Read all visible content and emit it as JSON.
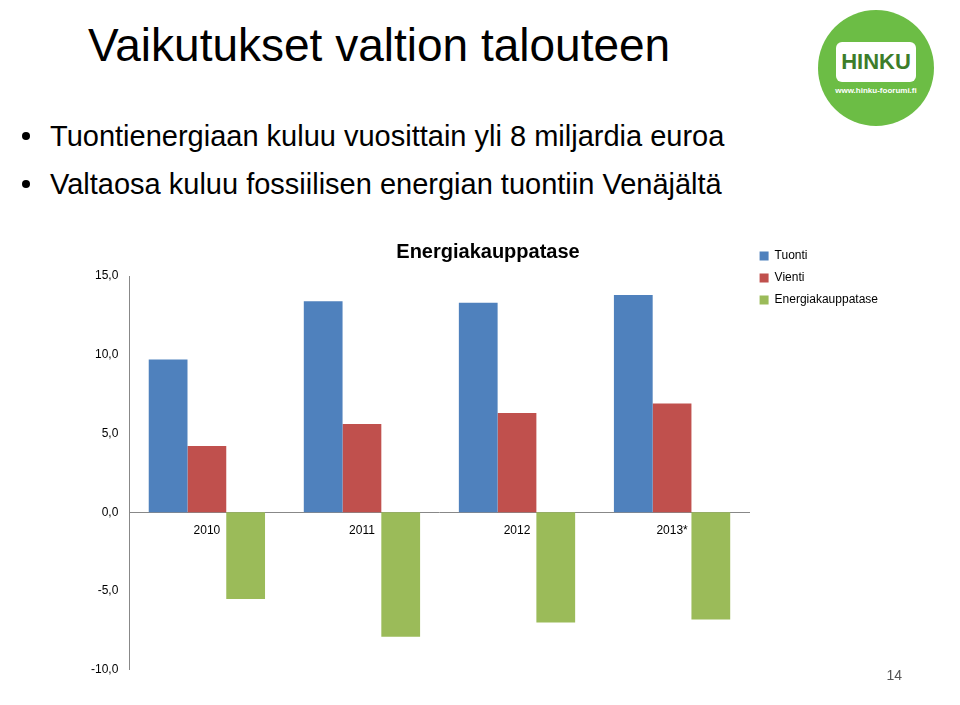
{
  "slide": {
    "title": "Vaikutukset valtion talouteen",
    "bullets": [
      "Tuontienergiaan kuluu vuosittain yli 8 miljardia euroa",
      "Valtaosa kuluu fossiilisen energian tuontiin Venäjältä"
    ],
    "logo": "HINKU",
    "logo_url": "www.hinku-foorumi.fi",
    "page_number": 14
  },
  "chart_data": {
    "type": "bar",
    "title": "Energiakauppatase",
    "categories": [
      "2010",
      "2011",
      "2012",
      "2013*"
    ],
    "series": [
      {
        "name": "Tuonti",
        "color": "#4f81bd",
        "values": [
          9.7,
          13.4,
          13.3,
          13.8
        ]
      },
      {
        "name": "Vienti",
        "color": "#c0504d",
        "values": [
          4.2,
          5.6,
          6.3,
          6.9
        ]
      },
      {
        "name": "Energiakauppatase",
        "color": "#9bbb59",
        "values": [
          -5.5,
          -7.9,
          -7.0,
          -6.8
        ]
      }
    ],
    "ylim": [
      -10,
      15
    ],
    "yticks": [
      {
        "value": -10,
        "label": "-10,0"
      },
      {
        "value": -5,
        "label": "-5,0"
      },
      {
        "value": 0,
        "label": "0,0"
      },
      {
        "value": 5,
        "label": "5,0"
      },
      {
        "value": 10,
        "label": "10,0"
      },
      {
        "value": 15,
        "label": "15,0"
      }
    ],
    "grid": false,
    "legend": "right"
  }
}
